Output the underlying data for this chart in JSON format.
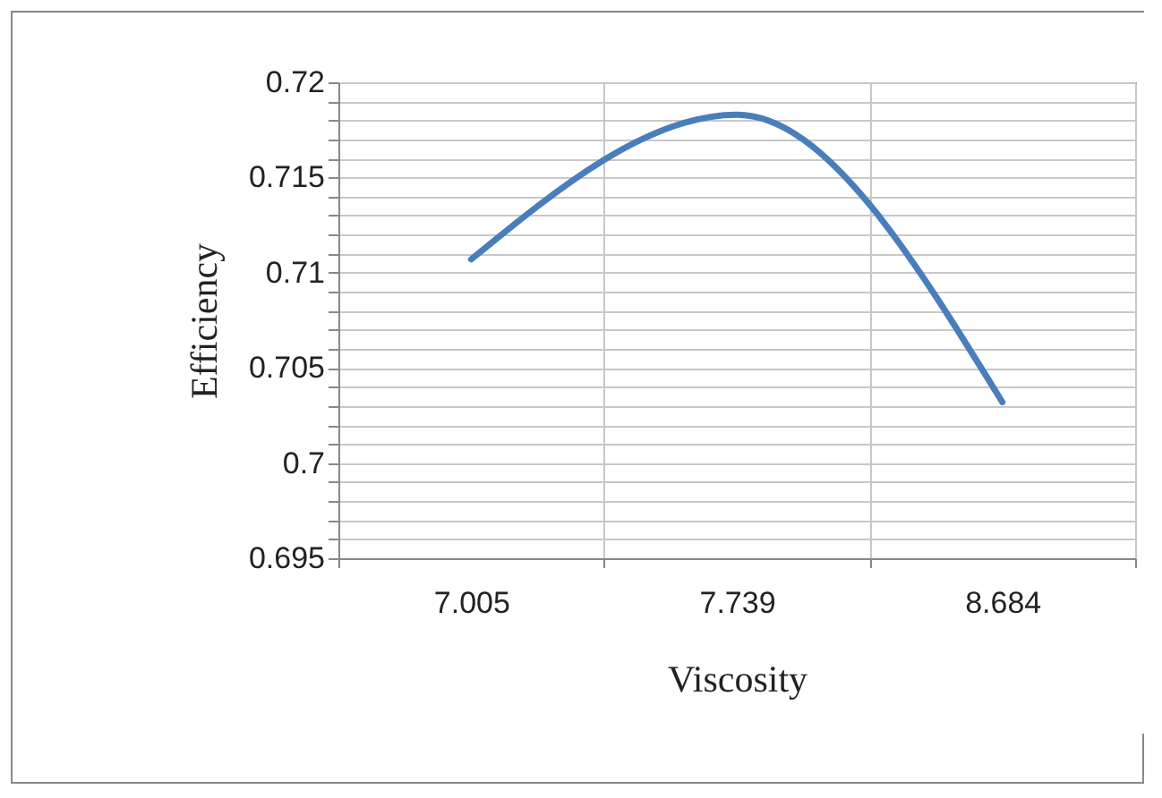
{
  "chart_data": {
    "type": "line",
    "xlabel": "Viscosity",
    "ylabel": "Efficiency",
    "categories": [
      "7.005",
      "7.739",
      "8.684"
    ],
    "series": [
      {
        "color": "#4a7ebb",
        "values": [
          0.7107,
          0.7183,
          0.7032
        ]
      }
    ],
    "ylim": [
      0.695,
      0.72
    ],
    "yticks": [
      0.695,
      {
        "value": 0.696,
        "label": null
      },
      {
        "value": 0.697,
        "label": null
      },
      {
        "value": 0.698,
        "label": null
      },
      {
        "value": 0.699,
        "label": null
      },
      0.7,
      {
        "value": 0.701,
        "label": null
      },
      {
        "value": 0.702,
        "label": null
      },
      {
        "value": 0.703,
        "label": null
      },
      {
        "value": 0.704,
        "label": null
      },
      0.705,
      {
        "value": 0.706,
        "label": null
      },
      {
        "value": 0.707,
        "label": null
      },
      {
        "value": 0.708,
        "label": null
      },
      {
        "value": 0.709,
        "label": null
      },
      0.71,
      {
        "value": 0.711,
        "label": null
      },
      {
        "value": 0.712,
        "label": null
      },
      {
        "value": 0.713,
        "label": null
      },
      {
        "value": 0.714,
        "label": null
      },
      0.715,
      {
        "value": 0.716,
        "label": null
      },
      {
        "value": 0.717,
        "label": null
      },
      {
        "value": 0.718,
        "label": null
      },
      {
        "value": 0.719,
        "label": null
      },
      0.72
    ],
    "grid": true,
    "marker": "none",
    "line_style": "solid"
  }
}
